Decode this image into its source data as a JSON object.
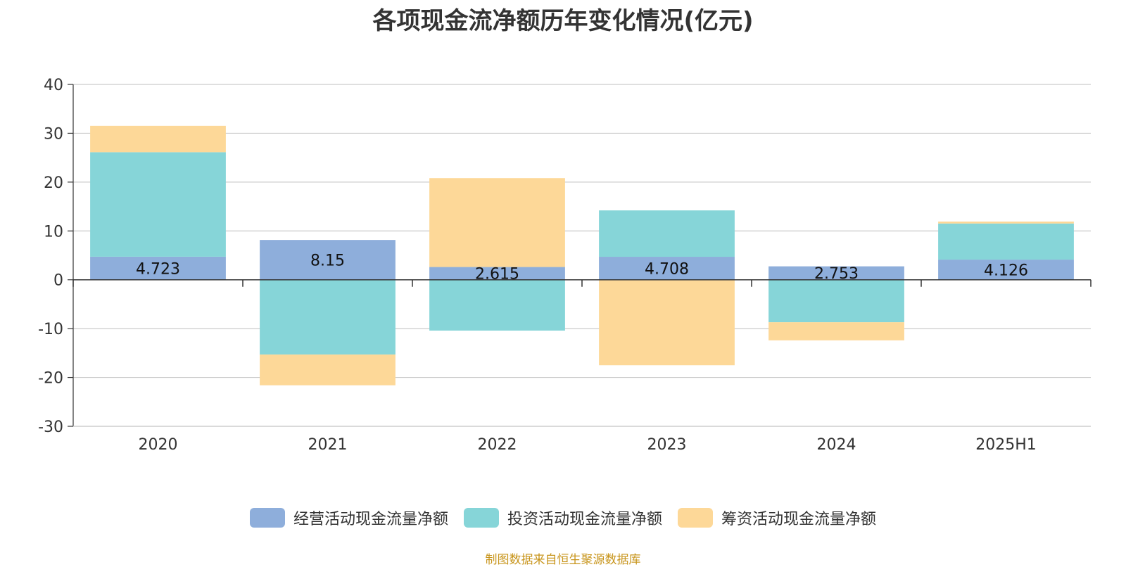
{
  "chart_data": {
    "type": "bar",
    "stacked": true,
    "title": "各项现金流净额历年变化情况(亿元)",
    "categories": [
      "2020",
      "2021",
      "2022",
      "2023",
      "2024",
      "2025H1"
    ],
    "ylim": [
      -30,
      40
    ],
    "yticks": [
      40,
      30,
      20,
      10,
      0,
      -10,
      -20,
      -30
    ],
    "grid": true,
    "legend_position": "bottom",
    "series": [
      {
        "name": "经营活动现金流量净额",
        "color": "#8eaedb",
        "values": [
          4.723,
          8.15,
          2.615,
          4.708,
          2.753,
          4.126
        ],
        "labels": [
          "4.723",
          "8.15",
          "2.615",
          "4.708",
          "2.753",
          "4.126"
        ]
      },
      {
        "name": "投资活动现金流量净额",
        "color": "#86d5d8",
        "values": [
          21.4,
          -15.3,
          -10.4,
          9.5,
          -8.7,
          7.4
        ]
      },
      {
        "name": "筹资活动现金流量净额",
        "color": "#fdd898",
        "values": [
          5.4,
          -6.3,
          18.2,
          -17.5,
          -3.7,
          0.4
        ]
      }
    ],
    "source": "制图数据来自恒生聚源数据库"
  }
}
